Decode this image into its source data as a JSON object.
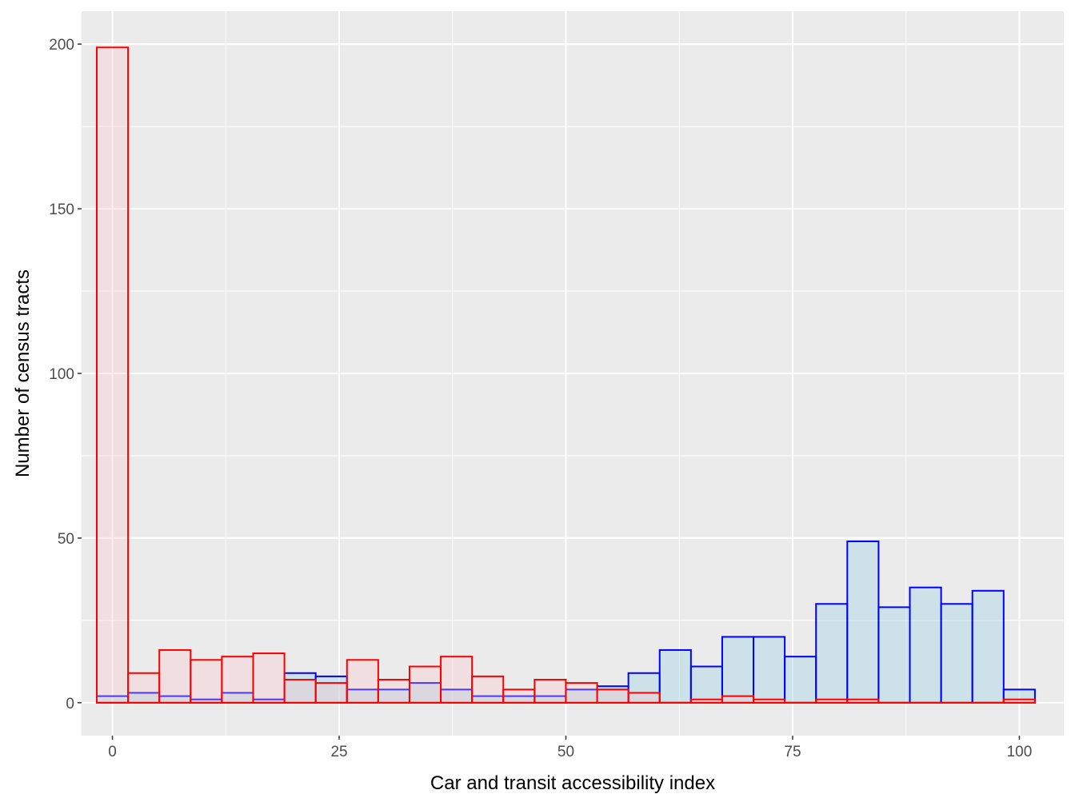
{
  "chart_data": {
    "type": "bar",
    "subtype": "overlapping-histogram",
    "title": "",
    "xlabel": "Car and transit accessibility index",
    "ylabel": "Number of census tracts",
    "xlim": [
      -3.4,
      104.9
    ],
    "ylim": [
      -10,
      210
    ],
    "x_ticks": [
      0,
      25,
      50,
      75,
      100
    ],
    "x_tick_labels": [
      "0",
      "25",
      "50",
      "75",
      "100"
    ],
    "y_ticks": [
      0,
      50,
      100,
      150,
      200
    ],
    "y_tick_labels": [
      "0",
      "50",
      "100",
      "150",
      "200"
    ],
    "grid": true,
    "legend": "none",
    "bin_width": 3.448,
    "bin_start": -1.724,
    "background": "#ebebeb",
    "grid_color": "#ffffff",
    "series": [
      {
        "outline": "#0000ff",
        "fill": "#add8e6",
        "fill_opacity": 0.5,
        "values": [
          2,
          3,
          2,
          1,
          3,
          1,
          9,
          8,
          4,
          4,
          6,
          4,
          2,
          2,
          2,
          4,
          5,
          9,
          16,
          11,
          20,
          20,
          14,
          30,
          49,
          29,
          35,
          30,
          34,
          4
        ]
      },
      {
        "outline": "#ff0000",
        "fill": "#ffc0cb",
        "fill_opacity": 0.3,
        "values": [
          199,
          9,
          16,
          13,
          14,
          15,
          7,
          6,
          13,
          7,
          11,
          14,
          8,
          4,
          7,
          6,
          4,
          3,
          0,
          1,
          2,
          1,
          0,
          1,
          1,
          0,
          0,
          0,
          0,
          1
        ]
      }
    ]
  }
}
